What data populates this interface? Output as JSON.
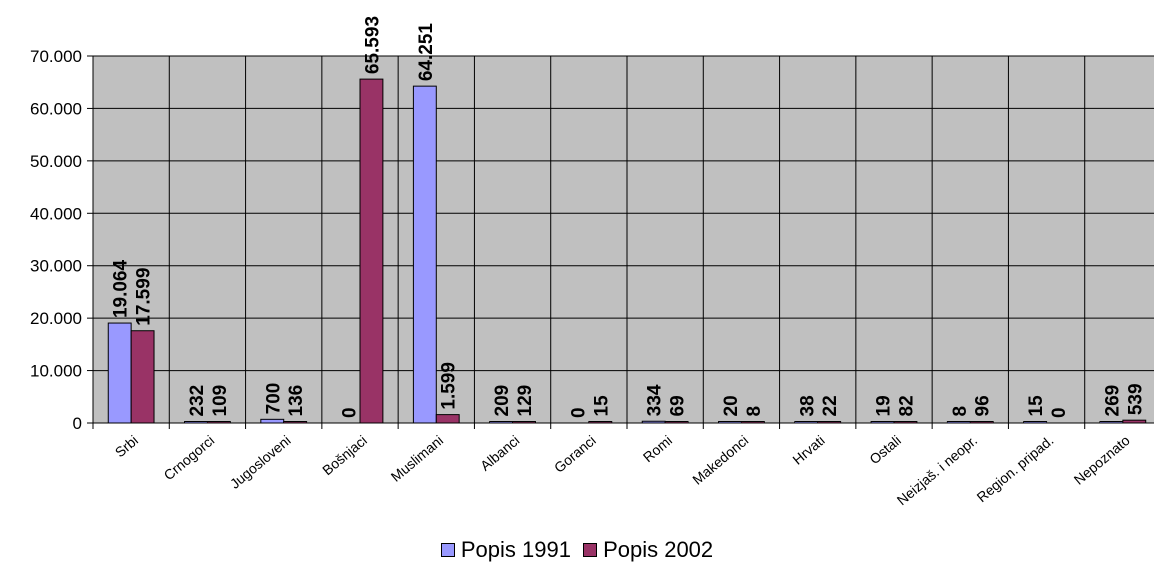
{
  "chart_data": {
    "type": "bar",
    "categories": [
      "Srbi",
      "Crnogorci",
      "Jugosloveni",
      "Bošnjaci",
      "Muslimani",
      "Albanci",
      "Goranci",
      "Romi",
      "Makedonci",
      "Hrvati",
      "Ostali",
      "Neizjaš. i neopr.",
      "Region. pripad.",
      "Nepoznato"
    ],
    "series": [
      {
        "name": "Popis 1991",
        "color": "#9999ff",
        "values": [
          19064,
          232,
          700,
          0,
          64251,
          209,
          0,
          334,
          20,
          38,
          19,
          8,
          15,
          269
        ],
        "labels": [
          "19.064",
          "232",
          "700",
          "0",
          "64.251",
          "209",
          "0",
          "334",
          "20",
          "38",
          "19",
          "8",
          "15",
          "269"
        ]
      },
      {
        "name": "Popis 2002",
        "color": "#993366",
        "values": [
          17599,
          109,
          136,
          65593,
          1599,
          129,
          15,
          69,
          8,
          22,
          82,
          96,
          0,
          539
        ],
        "labels": [
          "17.599",
          "109",
          "136",
          "65.593",
          "1.599",
          "129",
          "15",
          "69",
          "8",
          "22",
          "82",
          "96",
          "0",
          "539"
        ]
      }
    ],
    "ylim": [
      0,
      70000
    ],
    "yticks": [
      0,
      10000,
      20000,
      30000,
      40000,
      50000,
      60000,
      70000
    ],
    "ytick_labels": [
      "0",
      "10.000",
      "20.000",
      "30.000",
      "40.000",
      "50.000",
      "60.000",
      "70.000"
    ],
    "plot_background": "#c0c0c0",
    "grid": true,
    "legend_position": "bottom"
  }
}
